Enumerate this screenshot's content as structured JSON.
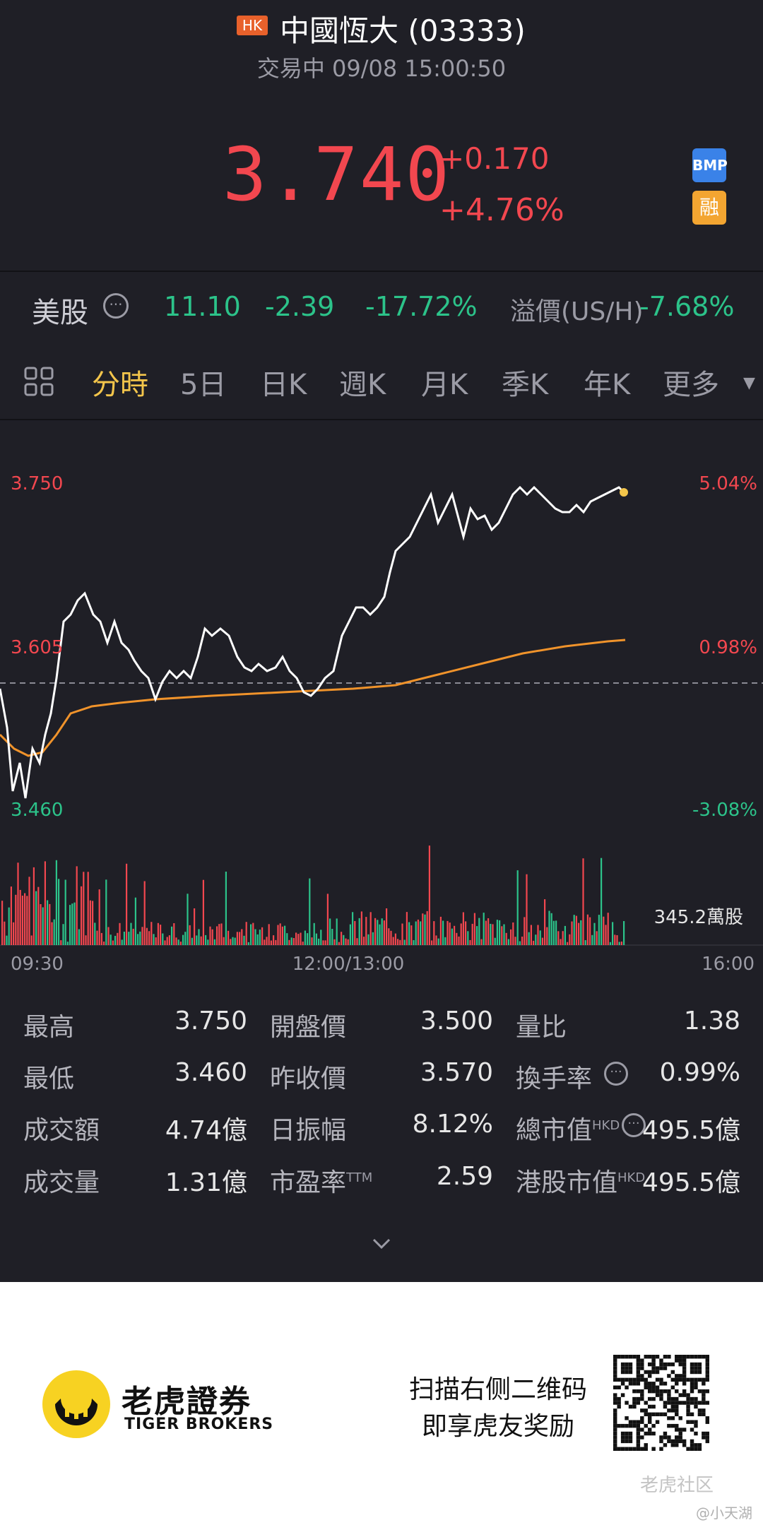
{
  "header": {
    "market_badge": "HK",
    "title": "中國恆大 (03333)",
    "status": "交易中 09/08 15:00:50",
    "price": "3.740",
    "change": "+0.170",
    "change_pct": "+4.76%",
    "badge_bmp": "BMP",
    "badge_margin": "融"
  },
  "us_row": {
    "label": "美股",
    "price": "11.10",
    "change": "-2.39",
    "change_pct": "-17.72%",
    "premium_label": "溢價(US/H)",
    "premium_val": "-7.68%"
  },
  "tabs": [
    "分時",
    "5日",
    "日K",
    "週K",
    "月K",
    "季K",
    "年K",
    "更多"
  ],
  "chart": {
    "y_high": "3.750",
    "y_mid": "3.605",
    "y_low": "3.460",
    "pct_high": "5.04%",
    "pct_mid": "0.98%",
    "pct_low": "-3.08%",
    "time_start": "09:30",
    "time_mid": "12:00/13:00",
    "time_end": "16:00",
    "volume_label": "345.2萬股"
  },
  "stats": {
    "high_label": "最高",
    "high_val": "3.750",
    "low_label": "最低",
    "low_val": "3.460",
    "amount_label": "成交額",
    "amount_val": "4.74億",
    "volume_label": "成交量",
    "volume_val": "1.31億",
    "open_label": "開盤價",
    "open_val": "3.500",
    "prev_label": "昨收價",
    "prev_val": "3.570",
    "amp_label": "日振幅",
    "amp_val": "8.12%",
    "pe_label": "市盈率",
    "pe_sup": "TTM",
    "pe_val": "2.59",
    "ratio_label": "量比",
    "ratio_val": "1.38",
    "turnover_label": "換手率",
    "turnover_val": "0.99%",
    "mcap_label": "總市值",
    "mcap_sup": "HKD",
    "mcap_val": "495.5億",
    "hkcap_label": "港股市值",
    "hkcap_sup": "HKD",
    "hkcap_val": "495.5億"
  },
  "footer": {
    "brand_cn": "老虎證券",
    "brand_en": "TIGER BROKERS",
    "promo_line1": "扫描右侧二维码",
    "promo_line2": "即享虎友奖励",
    "community": "老虎社区",
    "watermark": "@小天湖"
  },
  "colors": {
    "up": "#f2474f",
    "down": "#2cc38a",
    "accent": "#f3c54b",
    "avg_line": "#f0932b"
  }
}
